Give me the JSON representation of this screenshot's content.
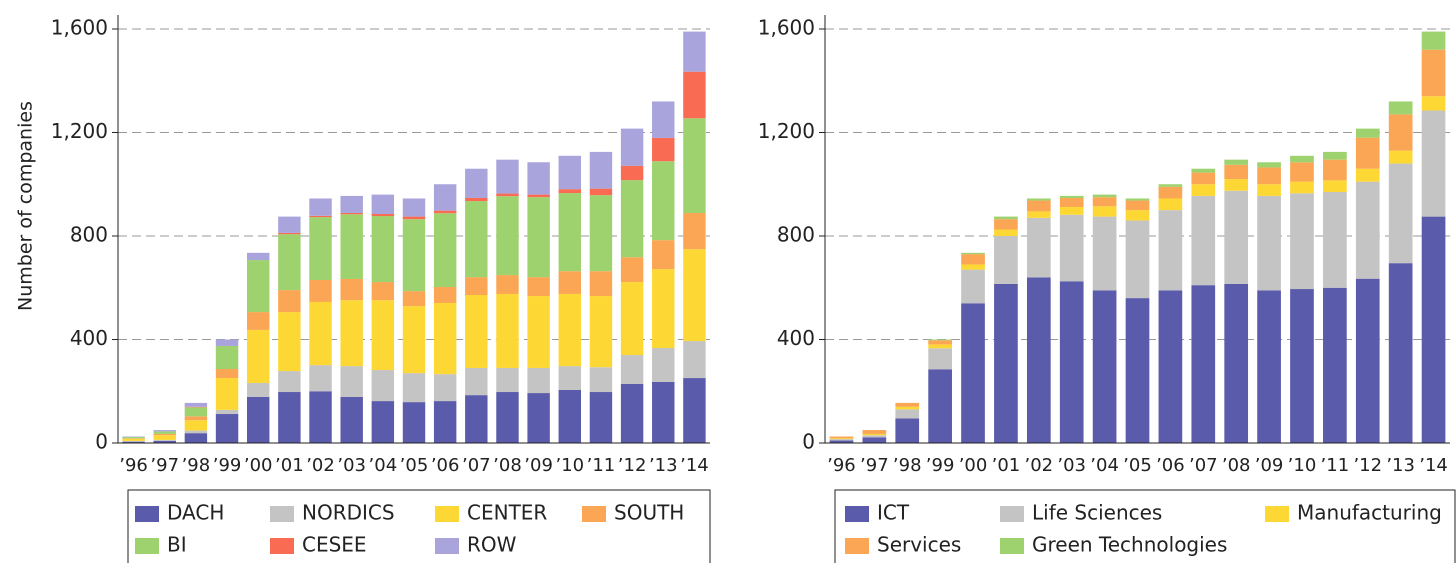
{
  "chart_data": [
    {
      "type": "bar",
      "stacked": true,
      "ylabel": "Number of companies",
      "categories": [
        "’96",
        "’97",
        "’98",
        "’99",
        "’00",
        "’01",
        "’02",
        "’03",
        "’04",
        "’05",
        "’06",
        "’07",
        "’08",
        "’09",
        "’10",
        "’11",
        "’12",
        "’13",
        "’14"
      ],
      "ylim": [
        0,
        1600
      ],
      "yticks": [
        0,
        400,
        800,
        {
          "value": 1200,
          "label": "1,200"
        },
        {
          "value": 1600,
          "label": "1,600"
        }
      ],
      "grid": true,
      "series": [
        {
          "name": "DACH",
          "color": "#5b5bab",
          "values": [
            5,
            8,
            38,
            112,
            178,
            197,
            200,
            178,
            162,
            158,
            162,
            185,
            197,
            193,
            205,
            197,
            228,
            236,
            251
          ]
        },
        {
          "name": "NORDICS",
          "color": "#c4c4c4",
          "values": [
            3,
            4,
            10,
            16,
            54,
            81,
            101,
            119,
            120,
            112,
            104,
            105,
            93,
            97,
            92,
            96,
            112,
            131,
            143
          ]
        },
        {
          "name": "CENTER",
          "color": "#fdd835",
          "values": [
            8,
            18,
            40,
            123,
            205,
            228,
            244,
            255,
            270,
            259,
            275,
            282,
            286,
            278,
            279,
            275,
            282,
            305,
            355
          ]
        },
        {
          "name": "SOUTH",
          "color": "#fba654",
          "values": [
            2,
            5,
            15,
            35,
            69,
            85,
            85,
            82,
            70,
            58,
            62,
            69,
            73,
            73,
            88,
            96,
            96,
            112,
            140
          ]
        },
        {
          "name": "BI",
          "color": "#9ed26f",
          "values": [
            5,
            10,
            35,
            89,
            201,
            216,
            243,
            250,
            255,
            278,
            285,
            294,
            305,
            309,
            302,
            294,
            298,
            305,
            366
          ]
        },
        {
          "name": "CESEE",
          "color": "#f96b52",
          "values": [
            0,
            0,
            2,
            0,
            0,
            5,
            5,
            5,
            8,
            10,
            10,
            12,
            10,
            10,
            15,
            25,
            55,
            90,
            180
          ]
        },
        {
          "name": "ROW",
          "color": "#a9a4dc",
          "values": [
            2,
            5,
            15,
            25,
            28,
            63,
            67,
            66,
            75,
            70,
            102,
            113,
            131,
            125,
            129,
            142,
            144,
            141,
            155
          ]
        }
      ]
    },
    {
      "type": "bar",
      "stacked": true,
      "categories": [
        "’96",
        "’97",
        "’98",
        "’99",
        "’00",
        "’01",
        "’02",
        "’03",
        "’04",
        "’05",
        "’06",
        "’07",
        "’08",
        "’09",
        "’10",
        "’11",
        "’12",
        "’13",
        "’14"
      ],
      "ylim": [
        0,
        1600
      ],
      "yticks": [
        0,
        400,
        800,
        {
          "value": 1200,
          "label": "1,200"
        },
        {
          "value": 1600,
          "label": "1,600"
        }
      ],
      "grid": true,
      "series": [
        {
          "name": "ICT",
          "color": "#5b5bab",
          "values": [
            10,
            22,
            95,
            285,
            540,
            615,
            640,
            625,
            590,
            560,
            590,
            610,
            615,
            590,
            595,
            600,
            635,
            695,
            875
          ]
        },
        {
          "name": "Life Sciences",
          "color": "#c4c4c4",
          "values": [
            5,
            8,
            35,
            81,
            130,
            185,
            230,
            257,
            285,
            300,
            310,
            345,
            360,
            365,
            370,
            370,
            375,
            385,
            410
          ]
        },
        {
          "name": "Manufacturing",
          "color": "#fdd835",
          "values": [
            3,
            5,
            10,
            15,
            20,
            25,
            25,
            30,
            40,
            40,
            45,
            45,
            45,
            45,
            45,
            45,
            50,
            50,
            55
          ]
        },
        {
          "name": "Services",
          "color": "#fba654",
          "values": [
            7,
            15,
            15,
            16,
            40,
            40,
            42,
            35,
            35,
            37,
            45,
            45,
            55,
            65,
            75,
            80,
            120,
            140,
            180
          ]
        },
        {
          "name": "Green Technologies",
          "color": "#9ed26f",
          "values": [
            0,
            0,
            0,
            3,
            5,
            10,
            8,
            8,
            10,
            8,
            10,
            15,
            20,
            20,
            25,
            30,
            35,
            50,
            70
          ]
        }
      ]
    }
  ]
}
